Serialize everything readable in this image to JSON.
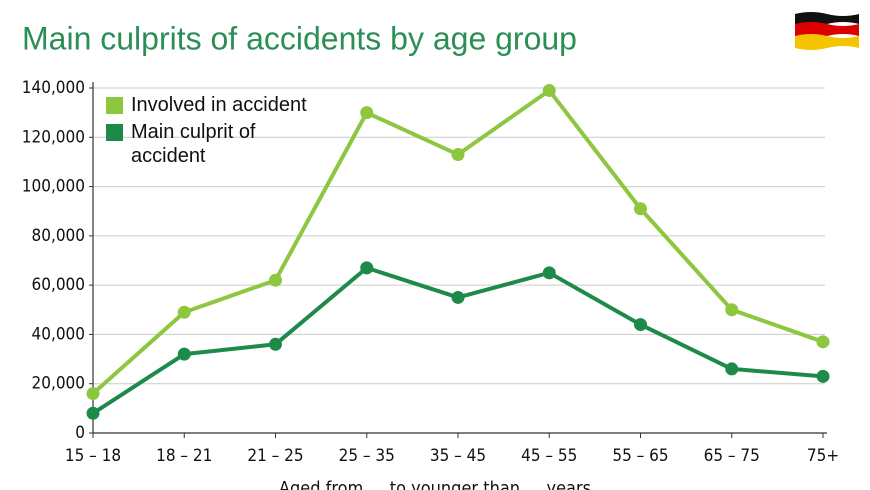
{
  "chart_data": {
    "type": "line",
    "title": "Main culprits of accidents by age group",
    "x_label": "Aged from … to younger than … years",
    "categories": [
      "15 – 18",
      "18 – 21",
      "21 – 25",
      "25 – 35",
      "35 – 45",
      "45 – 55",
      "55 – 65",
      "65 – 75",
      "75+"
    ],
    "series": [
      {
        "name": "Involved in accident",
        "color": "#8dc63f",
        "values": [
          16000,
          49000,
          62000,
          130000,
          113000,
          139000,
          91000,
          50000,
          37000
        ]
      },
      {
        "name": "Main culprit of accident",
        "color": "#1e8a4a",
        "values": [
          8000,
          32000,
          36000,
          67000,
          55000,
          65000,
          44000,
          26000,
          23000
        ]
      }
    ],
    "ylim": [
      0,
      140000
    ],
    "yticks": [
      0,
      {
        "value": 20000,
        "label": "20,000"
      },
      {
        "value": 40000,
        "label": "40,000"
      },
      {
        "value": 60000,
        "label": "60,000"
      },
      {
        "value": 80000,
        "label": "80,000"
      },
      {
        "value": 100000,
        "label": "100,000"
      },
      {
        "value": 120000,
        "label": "120,000"
      },
      {
        "value": 140000,
        "label": "140,000"
      }
    ],
    "grid": true,
    "legend": "upper left"
  }
}
